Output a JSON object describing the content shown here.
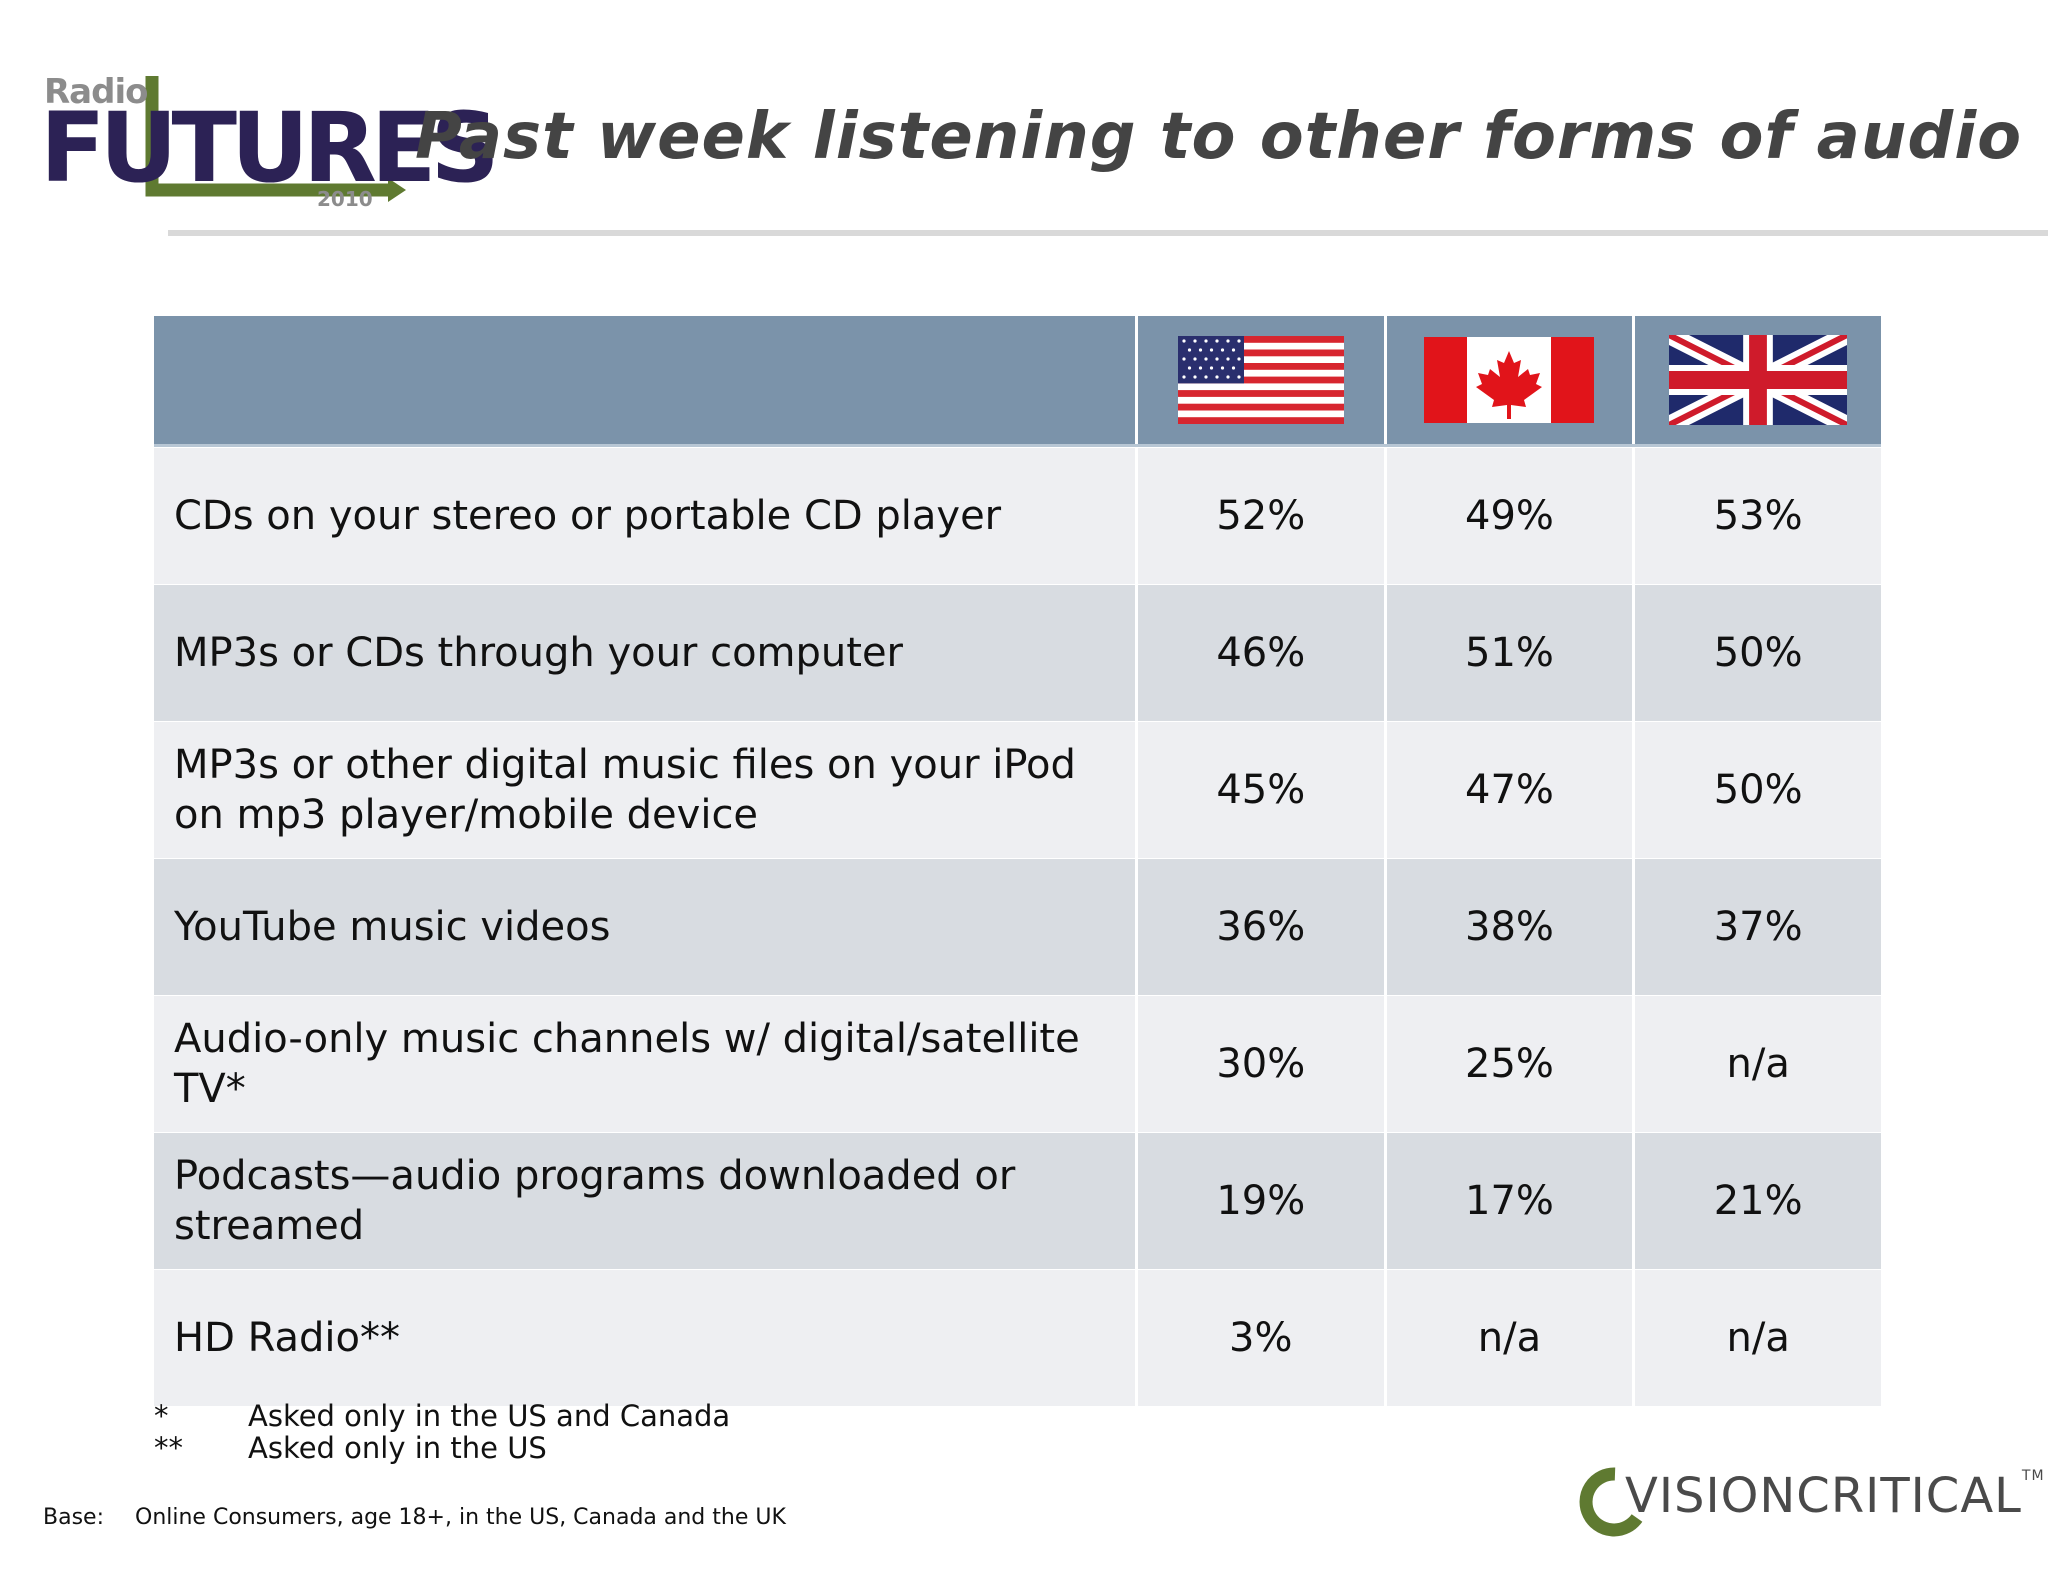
{
  "logo": {
    "radio": "Radio",
    "futures": "FUTURES",
    "year": "2010"
  },
  "title": "Past week listening to other forms of audio",
  "colors": {
    "header": "#7b93aa",
    "row_odd": "#eeeff2",
    "row_even": "#d8dce1",
    "brand_purple": "#2c2255",
    "brand_green": "#5f7a31"
  },
  "chart_data": {
    "type": "table",
    "columns": [
      {
        "name": "",
        "icon": "us-flag-icon"
      },
      {
        "name": "",
        "icon": "canada-flag-icon"
      },
      {
        "name": "",
        "icon": "uk-flag-icon"
      }
    ],
    "rows": [
      {
        "label": "CDs on your stereo or portable CD player",
        "values": [
          "52%",
          "49%",
          "53%"
        ]
      },
      {
        "label": "MP3s or CDs through your computer",
        "values": [
          "46%",
          "51%",
          "50%"
        ]
      },
      {
        "label": "MP3s or other digital music files on your iPod on mp3 player/mobile device",
        "values": [
          "45%",
          "47%",
          "50%"
        ]
      },
      {
        "label": "YouTube music videos",
        "values": [
          "36%",
          "38%",
          "37%"
        ]
      },
      {
        "label": "Audio-only music channels w/ digital/satellite TV*",
        "values": [
          "30%",
          "25%",
          "n/a"
        ]
      },
      {
        "label": "Podcasts—audio programs downloaded or streamed",
        "values": [
          "19%",
          "17%",
          "21%"
        ]
      },
      {
        "label": "HD Radio**",
        "values": [
          "3%",
          "n/a",
          "n/a"
        ]
      }
    ]
  },
  "notes": [
    {
      "mark": "*",
      "text": "Asked only in the US and Canada"
    },
    {
      "mark": "**",
      "text": "Asked only in the US"
    }
  ],
  "base": {
    "label": "Base:",
    "text": "Online Consumers, age 18+, in the US, Canada and the UK"
  },
  "brand": {
    "name": "VISIONCRITICAL",
    "tm": "TM"
  }
}
